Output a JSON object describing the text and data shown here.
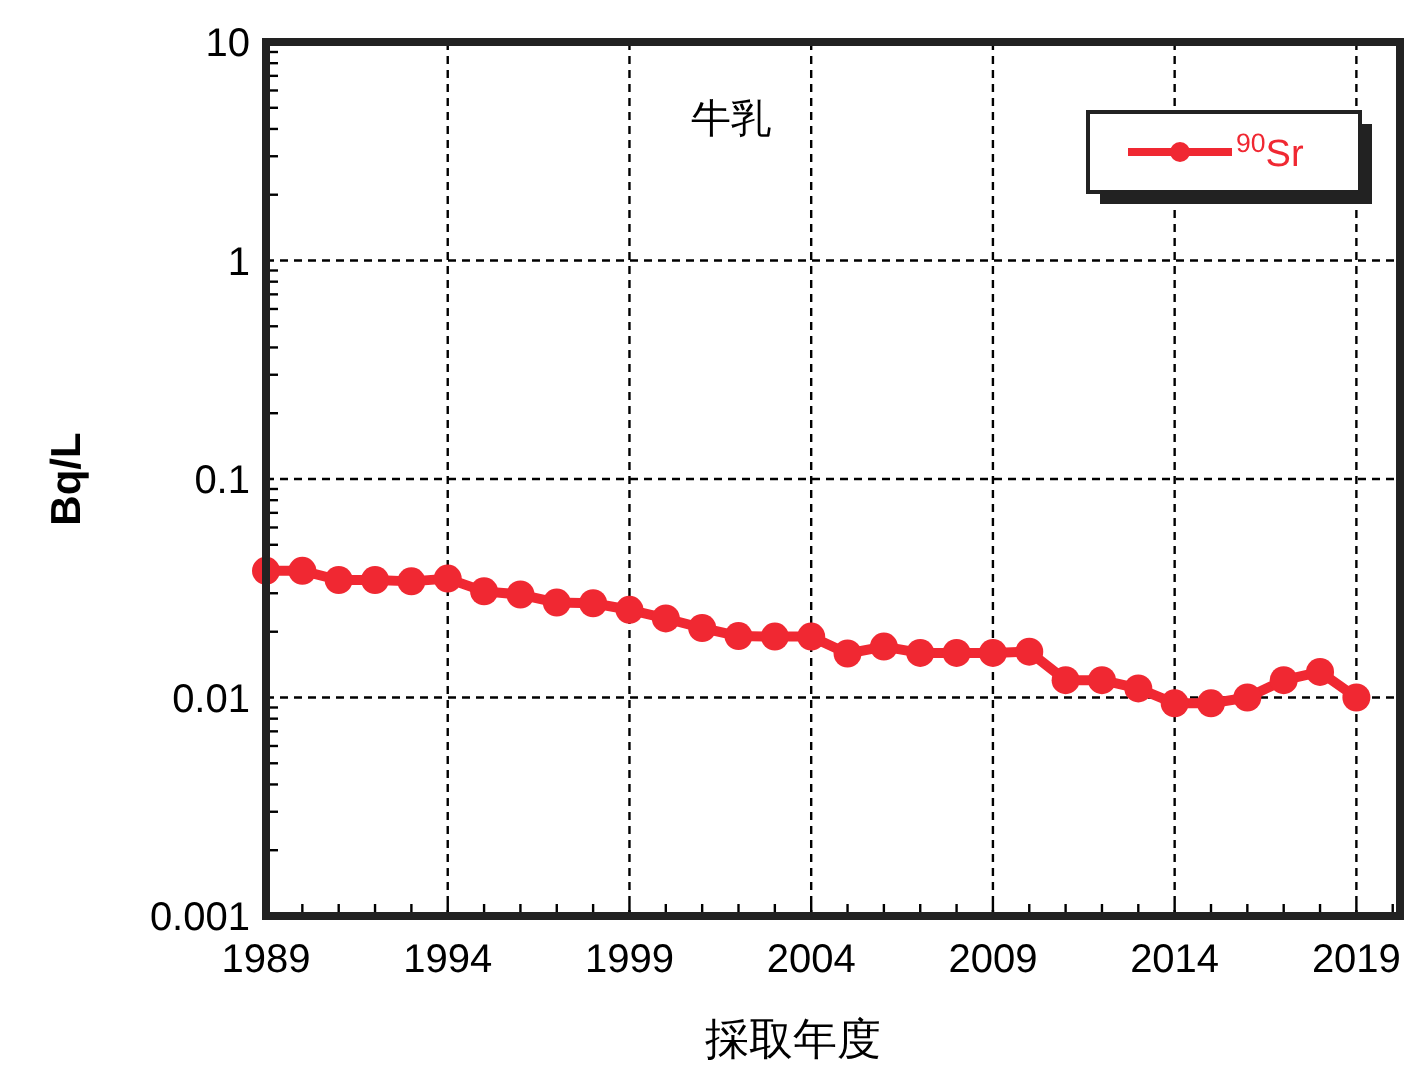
{
  "chart_data": {
    "type": "line",
    "title": "牛乳",
    "xlabel": "採取年度",
    "ylabel": "Bq/L",
    "x": [
      1989,
      1990,
      1991,
      1992,
      1993,
      1994,
      1995,
      1996,
      1997,
      1998,
      1999,
      2000,
      2001,
      2002,
      2003,
      2004,
      2005,
      2006,
      2007,
      2008,
      2009,
      2010,
      2011,
      2012,
      2013,
      2014,
      2015,
      2016,
      2017,
      2018,
      2019
    ],
    "series": [
      {
        "name": "$^{90}$Sr",
        "color": "#f02832",
        "values": [
          0.038,
          0.038,
          0.0345,
          0.0345,
          0.034,
          0.035,
          0.0306,
          0.0296,
          0.0272,
          0.027,
          0.0252,
          0.023,
          0.0208,
          0.0191,
          0.019,
          0.019,
          0.0159,
          0.0171,
          0.016,
          0.016,
          0.016,
          0.0162,
          0.012,
          0.012,
          0.011,
          0.0094,
          0.0094,
          0.01,
          0.012,
          0.0131,
          0.01
        ]
      }
    ],
    "xlim": [
      1989,
      2020.2
    ],
    "xticks": [
      1989,
      1994,
      1999,
      2004,
      2009,
      2014,
      2019
    ],
    "ylim": [
      0.001,
      10
    ],
    "yticks": [
      0.001,
      0.01,
      0.1,
      1,
      10
    ],
    "log": "y",
    "grid": true,
    "legend": "top right",
    "marker": "circle",
    "line_style": "solid"
  }
}
